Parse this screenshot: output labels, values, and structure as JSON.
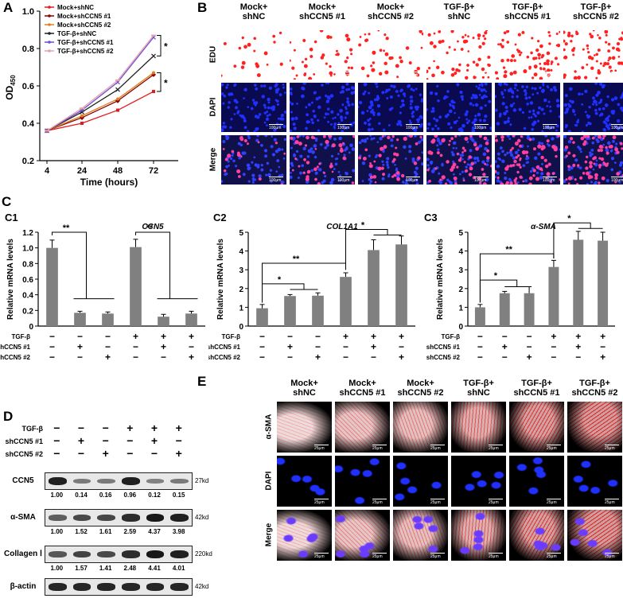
{
  "panels": {
    "A": "A",
    "B": "B",
    "C": "C",
    "C1": "C1",
    "C2": "C2",
    "C3": "C3",
    "D": "D",
    "E": "E"
  },
  "panelA": {
    "ylabel_main": "OD",
    "ylabel_sub": "450",
    "xlabel": "Time (hours)",
    "legend": [
      "Mock+shNC",
      "Mock+shCCN5 #1",
      "Mock+shCCN5 #2",
      "TGF-β+shNC",
      "TGF-β+shCCN5 #1",
      "TGF-β+shCCN5 #2"
    ],
    "yticks": [
      "0.2",
      "0.4",
      "0.6",
      "0.8",
      "1.0"
    ],
    "xticks": [
      "4",
      "24",
      "48",
      "72"
    ],
    "sig1": "*",
    "sig2": "*"
  },
  "chart_data": [
    {
      "type": "line",
      "title": "",
      "xlabel": "Time (hours)",
      "ylabel": "OD450",
      "x": [
        4,
        24,
        48,
        72
      ],
      "ylim": [
        0.2,
        1.0
      ],
      "series": [
        {
          "name": "Mock+shNC",
          "color": "#e31a1c",
          "values": [
            0.36,
            0.4,
            0.47,
            0.57
          ]
        },
        {
          "name": "Mock+shCCN5 #1",
          "color": "#8b0000",
          "values": [
            0.36,
            0.43,
            0.52,
            0.66
          ]
        },
        {
          "name": "Mock+shCCN5 #2",
          "color": "#e08020",
          "values": [
            0.36,
            0.44,
            0.53,
            0.67
          ]
        },
        {
          "name": "TGF-β+shNC",
          "color": "#222222",
          "values": [
            0.36,
            0.46,
            0.58,
            0.76
          ]
        },
        {
          "name": "TGF-β+shCCN5 #1",
          "color": "#6a4fd0",
          "values": [
            0.36,
            0.47,
            0.62,
            0.86
          ]
        },
        {
          "name": "TGF-β+shCCN5 #2",
          "color": "#e8a0b0",
          "values": [
            0.36,
            0.48,
            0.63,
            0.87
          ]
        }
      ]
    },
    {
      "type": "bar",
      "title": "CCN5",
      "ylabel": "Relative mRNA levels",
      "categories": [
        "1",
        "2",
        "3",
        "4",
        "5",
        "6"
      ],
      "values": [
        1.0,
        0.17,
        0.16,
        1.01,
        0.12,
        0.16
      ],
      "errors": [
        0.1,
        0.02,
        0.02,
        0.1,
        0.03,
        0.03
      ],
      "ylim": [
        0,
        1.2
      ],
      "yticks": [
        "0",
        "0.2",
        "0.4",
        "0.6",
        "0.8",
        "1.0",
        "1.2"
      ]
    },
    {
      "type": "bar",
      "title": "COL1A1",
      "ylabel": "Relative mRNA levels",
      "categories": [
        "1",
        "2",
        "3",
        "4",
        "5",
        "6"
      ],
      "values": [
        0.95,
        1.6,
        1.62,
        2.62,
        4.05,
        4.35
      ],
      "errors": [
        0.2,
        0.08,
        0.15,
        0.22,
        0.55,
        0.45
      ],
      "ylim": [
        0,
        5
      ],
      "yticks": [
        "0",
        "1",
        "2",
        "3",
        "4",
        "5"
      ]
    },
    {
      "type": "bar",
      "title": "α-SMA",
      "ylabel": "Relative mRNA levels",
      "categories": [
        "1",
        "2",
        "3",
        "4",
        "5",
        "6"
      ],
      "values": [
        1.0,
        1.75,
        1.75,
        3.15,
        4.6,
        4.55
      ],
      "errors": [
        0.15,
        0.1,
        0.35,
        0.35,
        0.45,
        0.45
      ],
      "ylim": [
        0,
        5
      ],
      "yticks": [
        "0",
        "1",
        "2",
        "3",
        "4",
        "5"
      ]
    }
  ],
  "treatments": {
    "rows": [
      "TGF-β",
      "shCCN5 #1",
      "shCCN5 #2"
    ],
    "signs": [
      [
        "−",
        "−",
        "−",
        "+",
        "+",
        "+"
      ],
      [
        "−",
        "+",
        "−",
        "−",
        "+",
        "−"
      ],
      [
        "−",
        "−",
        "+",
        "−",
        "−",
        "+"
      ]
    ]
  },
  "c_sig": {
    "c1": [
      "**",
      "**"
    ],
    "c2": [
      "*",
      "**",
      "*"
    ],
    "c3": [
      "*",
      "**",
      "*"
    ]
  },
  "columnHeaders": [
    [
      "Mock+",
      "shNC"
    ],
    [
      "Mock+",
      "shCCN5 #1"
    ],
    [
      "Mock+",
      "shCCN5 #2"
    ],
    [
      "TGF-β+",
      "shNC"
    ],
    [
      "TGF-β+",
      "shCCN5 #1"
    ],
    [
      "TGF-β+",
      "shCCN5 #2"
    ]
  ],
  "panelB": {
    "rows": [
      "EDU",
      "DAPI",
      "Merge"
    ],
    "scale": "100μm"
  },
  "panelE": {
    "rows": [
      "α-SMA",
      "DAPI",
      "Merge"
    ],
    "scale": "25μm"
  },
  "panelD": {
    "proteins": [
      {
        "name": "CCN5",
        "kd": "27kd",
        "quant": [
          "1.00",
          "0.14",
          "0.16",
          "0.96",
          "0.12",
          "0.15"
        ],
        "intensity": [
          0.9,
          0.25,
          0.25,
          0.9,
          0.2,
          0.25
        ]
      },
      {
        "name": "α-SMA",
        "kd": "42kd",
        "quant": [
          "1.00",
          "1.52",
          "1.61",
          "2.59",
          "4.37",
          "3.98"
        ],
        "intensity": [
          0.45,
          0.6,
          0.62,
          0.8,
          0.95,
          0.9
        ]
      },
      {
        "name": "Collagen Ⅰ",
        "kd": "220kd",
        "quant": [
          "1.00",
          "1.57",
          "1.41",
          "2.48",
          "4.41",
          "4.01"
        ],
        "intensity": [
          0.5,
          0.65,
          0.6,
          0.8,
          0.95,
          0.9
        ]
      },
      {
        "name": "β-actin",
        "kd": "42kd",
        "quant": [],
        "intensity": [
          0.85,
          0.85,
          0.85,
          0.85,
          0.85,
          0.85
        ]
      }
    ]
  },
  "colors": {
    "bar": "#808080",
    "edu": "#ff2020",
    "dapi": "#2030ff",
    "sma": "#e01818"
  }
}
